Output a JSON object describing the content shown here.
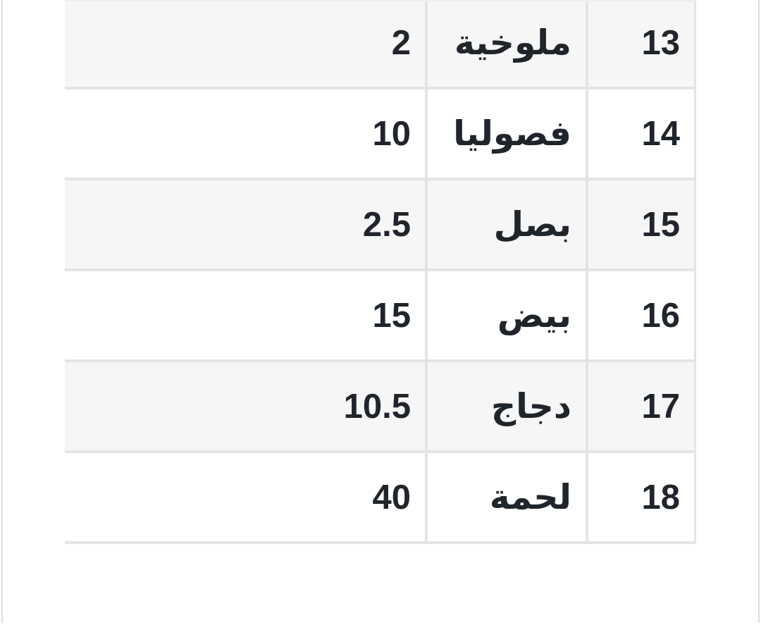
{
  "colors": {
    "row-shaded": "#f6f6f6",
    "row-plain": "#ffffff",
    "border": "#e4e4e4",
    "border-outer": "#e4e4e4",
    "text": "#20252b",
    "edge": "#dcdcdc",
    "strip": "#ededed",
    "page-bg": "#ffffff"
  },
  "table": {
    "direction": "rtl",
    "rows": [
      {
        "index": "13",
        "name": "ملوخية",
        "value": "2",
        "shaded": true
      },
      {
        "index": "14",
        "name": "فصوليا",
        "value": "10",
        "shaded": false
      },
      {
        "index": "15",
        "name": "بصل",
        "value": "2.5",
        "shaded": true
      },
      {
        "index": "16",
        "name": "بيض",
        "value": "15",
        "shaded": false
      },
      {
        "index": "17",
        "name": "دجاج",
        "value": "10.5",
        "shaded": true
      },
      {
        "index": "18",
        "name": "لحمة",
        "value": "40",
        "shaded": false
      }
    ]
  }
}
